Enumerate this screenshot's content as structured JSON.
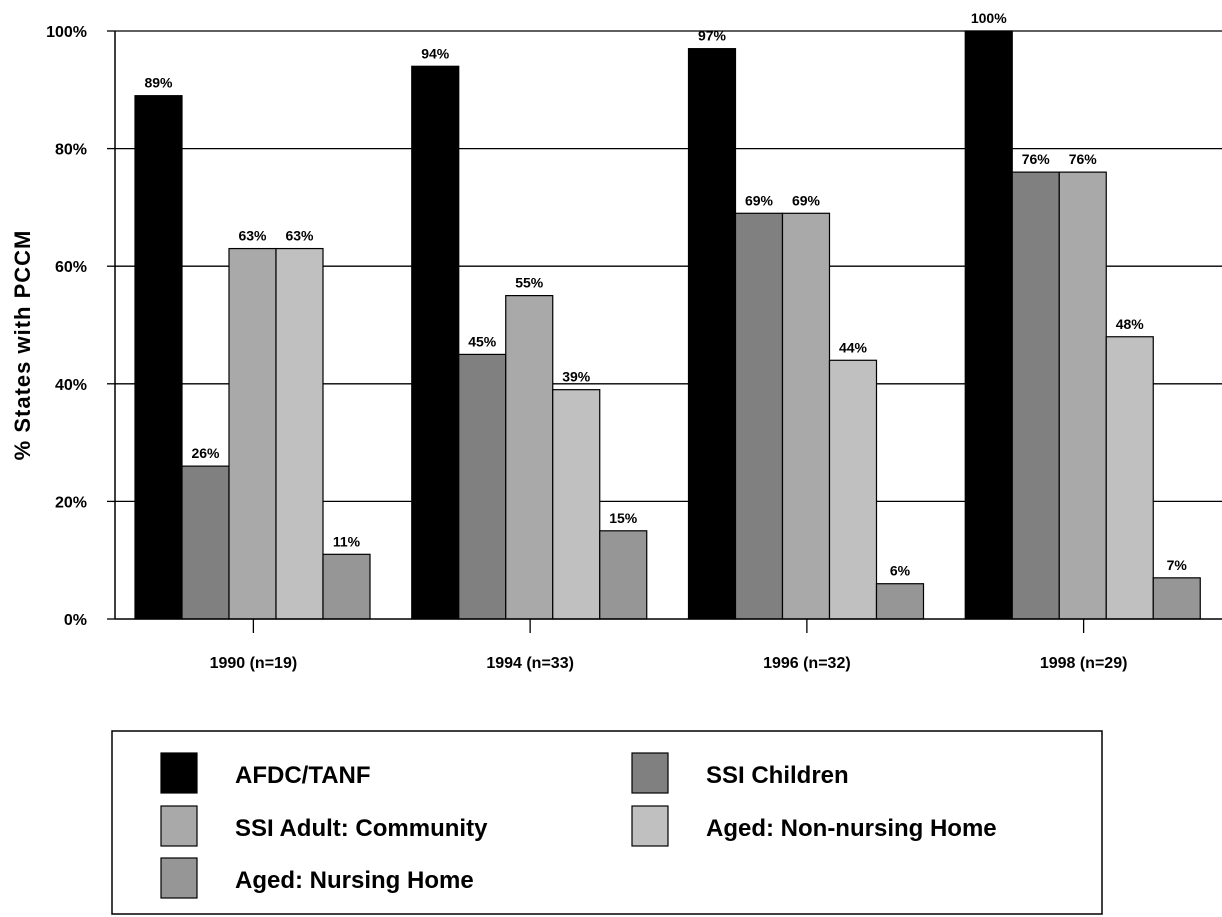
{
  "chart_data": {
    "type": "bar",
    "categories": [
      "1990 (n=19)",
      "1994 (n=33)",
      "1996 (n=32)",
      "1998 (n=29)"
    ],
    "series": [
      {
        "name": "AFDC/TANF",
        "values": [
          89,
          94,
          97,
          100
        ],
        "color": "#000000"
      },
      {
        "name": "SSI Children",
        "values": [
          26,
          45,
          69,
          76
        ],
        "color": "#808080"
      },
      {
        "name": "SSI Adult: Community",
        "values": [
          63,
          55,
          69,
          76
        ],
        "color": "#a9a9a9"
      },
      {
        "name": "Aged: Non-nursing Home",
        "values": [
          63,
          39,
          44,
          48
        ],
        "color": "#c0c0c0"
      },
      {
        "name": "Aged: Nursing Home",
        "values": [
          11,
          15,
          6,
          7
        ],
        "color": "#969696"
      }
    ],
    "data_labels": [
      [
        "89%",
        "94%",
        "97%",
        "100%"
      ],
      [
        "26%",
        "45%",
        "69%",
        "76%"
      ],
      [
        "63%",
        "55%",
        "69%",
        "76%"
      ],
      [
        "63%",
        "39%",
        "44%",
        "48%"
      ],
      [
        "11%",
        "15%",
        "6%",
        "7%"
      ]
    ],
    "title": "",
    "xlabel": "",
    "ylabel": "% States with PCCM",
    "ylim": [
      0,
      100
    ],
    "yticks": [
      "0%",
      "20%",
      "40%",
      "60%",
      "80%",
      "100%"
    ],
    "grid": true,
    "legend_position": "bottom"
  }
}
